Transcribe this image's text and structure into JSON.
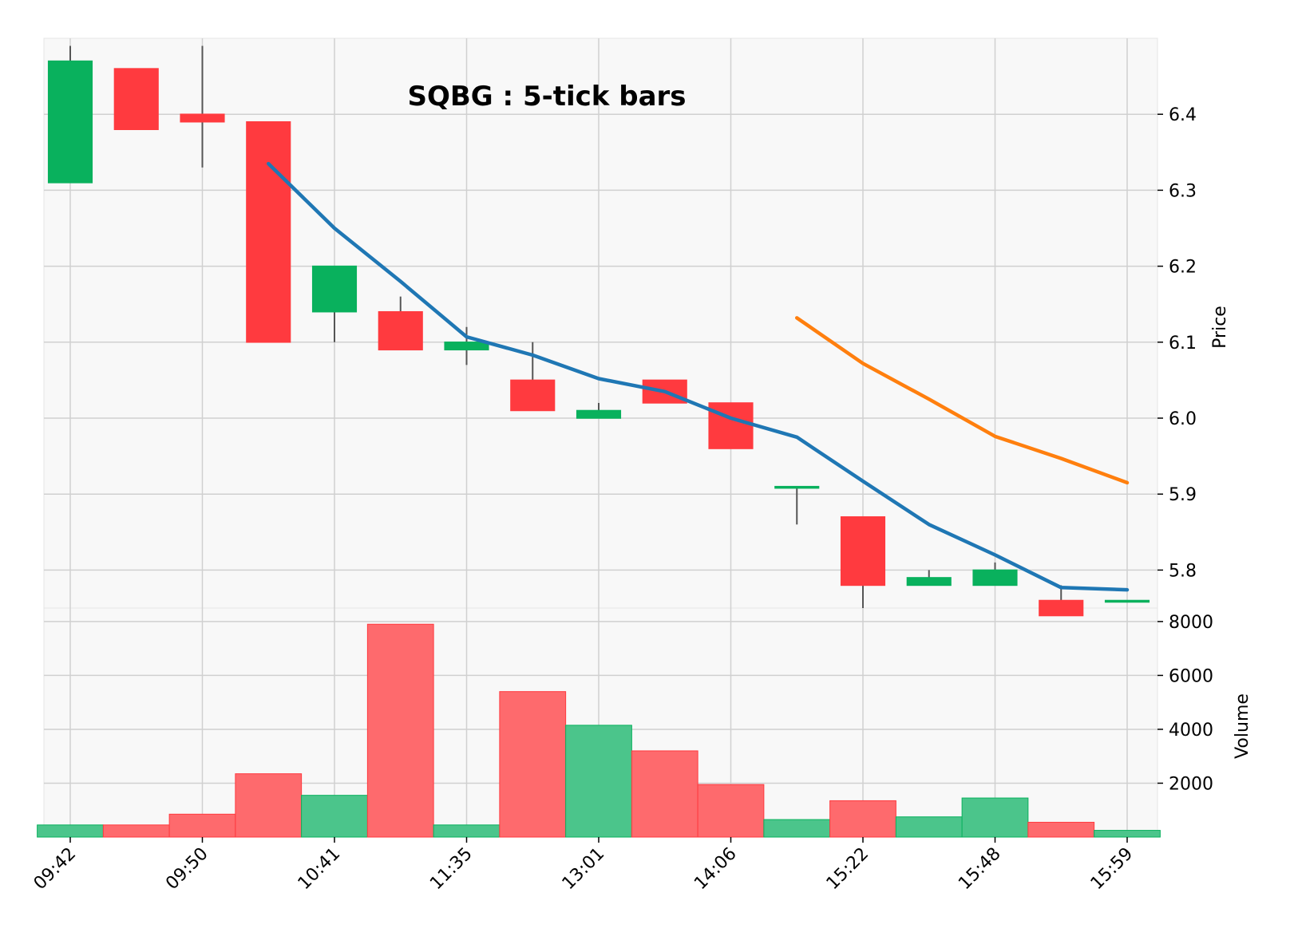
{
  "chart_data": {
    "type": "candlestick",
    "title": "SQBG : 5-tick bars",
    "ylabel_price": "Price",
    "ylabel_volume": "Volume",
    "x_tick_labels": [
      "09:42",
      "09:50",
      "10:41",
      "11:35",
      "13:01",
      "14:06",
      "15:22",
      "15:48",
      "15:59"
    ],
    "x_tick_bar_indices": [
      0,
      2,
      4,
      6,
      8,
      10,
      12,
      14,
      16
    ],
    "price_ylim": [
      5.75,
      6.5
    ],
    "price_ticks": [
      5.8,
      5.9,
      6.0,
      6.1,
      6.2,
      6.3,
      6.4
    ],
    "volume_ylim": [
      0,
      8500
    ],
    "volume_ticks": [
      2000,
      4000,
      6000,
      8000
    ],
    "bars": [
      {
        "open": 6.31,
        "high": 6.49,
        "low": 6.31,
        "close": 6.47,
        "volume": 450
      },
      {
        "open": 6.46,
        "high": 6.46,
        "low": 6.38,
        "close": 6.38,
        "volume": 450
      },
      {
        "open": 6.4,
        "high": 6.49,
        "low": 6.33,
        "close": 6.39,
        "volume": 850
      },
      {
        "open": 6.39,
        "high": 6.39,
        "low": 6.1,
        "close": 6.1,
        "volume": 2350
      },
      {
        "open": 6.14,
        "high": 6.2,
        "low": 6.1,
        "close": 6.2,
        "volume": 1550
      },
      {
        "open": 6.14,
        "high": 6.16,
        "low": 6.09,
        "close": 6.09,
        "volume": 7900
      },
      {
        "open": 6.09,
        "high": 6.12,
        "low": 6.07,
        "close": 6.1,
        "volume": 450
      },
      {
        "open": 6.05,
        "high": 6.1,
        "low": 6.01,
        "close": 6.01,
        "volume": 5400
      },
      {
        "open": 6.0,
        "high": 6.02,
        "low": 6.0,
        "close": 6.01,
        "volume": 4150
      },
      {
        "open": 6.05,
        "high": 6.05,
        "low": 6.02,
        "close": 6.02,
        "volume": 3200
      },
      {
        "open": 6.02,
        "high": 6.02,
        "low": 5.96,
        "close": 5.96,
        "volume": 1950
      },
      {
        "open": 5.91,
        "high": 5.91,
        "low": 5.86,
        "close": 5.91,
        "volume": 650
      },
      {
        "open": 5.87,
        "high": 5.87,
        "low": 5.75,
        "close": 5.78,
        "volume": 1350
      },
      {
        "open": 5.78,
        "high": 5.8,
        "low": 5.78,
        "close": 5.79,
        "volume": 750
      },
      {
        "open": 5.78,
        "high": 5.81,
        "low": 5.78,
        "close": 5.8,
        "volume": 1450
      },
      {
        "open": 5.76,
        "high": 5.78,
        "low": 5.74,
        "close": 5.74,
        "volume": 550
      },
      {
        "open": 5.76,
        "high": 5.76,
        "low": 5.76,
        "close": 5.76,
        "volume": 250
      }
    ],
    "moving_averages": [
      {
        "color": "#1f77b4",
        "start_index": 3,
        "values": [
          6.335,
          6.25,
          6.18,
          6.107,
          6.083,
          6.052,
          6.035,
          6.0,
          5.975,
          5.917,
          5.86,
          5.82,
          5.777,
          5.774
        ]
      },
      {
        "color": "#ff7f0e",
        "start_index": 11,
        "values": [
          6.132,
          6.072,
          6.025,
          5.976,
          5.947,
          5.915
        ]
      }
    ],
    "colors": {
      "up": "#09b15d",
      "down": "#ff3a3f",
      "up_volume": "#4bc58b",
      "down_volume": "#fe6a6d",
      "wick": "#555555",
      "grid": "#d0d0d0",
      "panel_bg": "#f8f8f8"
    },
    "grid": true
  }
}
